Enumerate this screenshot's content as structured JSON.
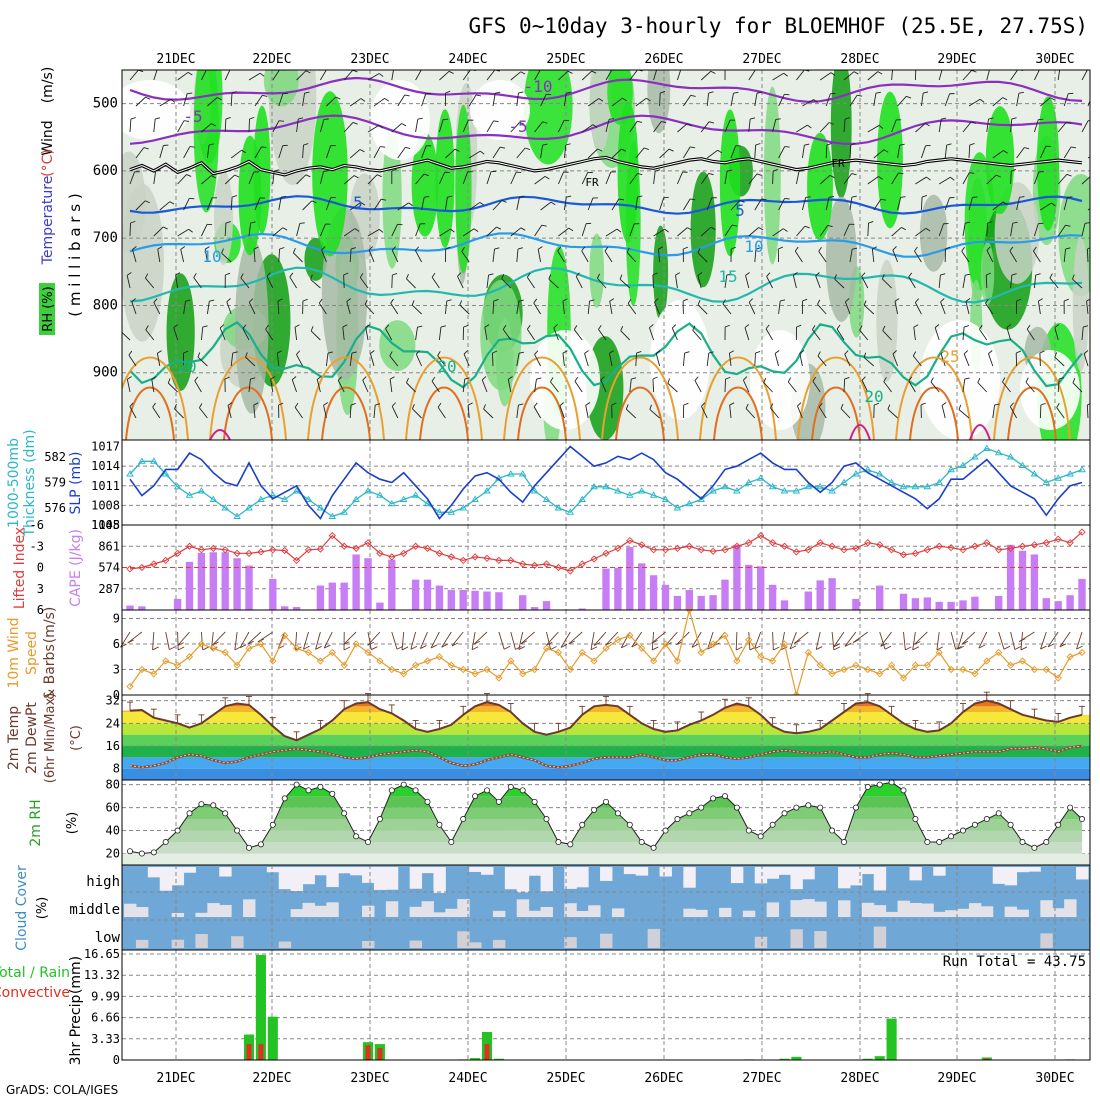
{
  "title": "GFS 0~10day 3-hourly for BLOEMHOF (25.5E, 27.75S)",
  "footer": "GrADS: COLA/IGES",
  "days": [
    "21DEC",
    "22DEC",
    "23DEC",
    "24DEC",
    "25DEC",
    "26DEC",
    "27DEC",
    "28DEC",
    "29DEC",
    "30DEC"
  ],
  "chart_data": [
    {
      "type": "heatmap",
      "name": "upper-air cross-section",
      "ylabel": "m i l l i b a r s",
      "yticks": [
        500,
        600,
        700,
        800,
        900
      ],
      "ylim": [
        1000,
        450
      ],
      "legend": {
        "wind": "Wind (m/s)",
        "temperature": "Temperature (°C)",
        "rh": "RH (%)"
      },
      "contour_labels": [
        "-10",
        "-5",
        "-5",
        "FR",
        "FR",
        "5",
        "5",
        "10",
        "10",
        "15",
        "20",
        "20",
        "20",
        "25"
      ],
      "freezing_level_mb": [
        598,
        592,
        600,
        590,
        602,
        596,
        588,
        604,
        600,
        594,
        586,
        598,
        602,
        606,
        600,
        596,
        594,
        598,
        592,
        594,
        598,
        600,
        596,
        592,
        588,
        584,
        590,
        596,
        594,
        590,
        586,
        588,
        592,
        596,
        600,
        598,
        594,
        590,
        586,
        582,
        580,
        586,
        590,
        594,
        596,
        592,
        588,
        584,
        582,
        586,
        588,
        584,
        582,
        586,
        590,
        594,
        598,
        596,
        592,
        588,
        586,
        584,
        586,
        588,
        590,
        592,
        590,
        586,
        584,
        582,
        584,
        586,
        588,
        590,
        592,
        590,
        588,
        586,
        584,
        586,
        588
      ]
    },
    {
      "type": "line",
      "name": "thickness-slp",
      "ylabel_left": "1000-500mb Thickness (dm)",
      "ylabel_right": "SLP (mb)",
      "yticks_left": [
        576,
        579,
        582
      ],
      "yticks_right": [
        1005,
        1008,
        1011,
        1014,
        1017
      ],
      "series": [
        {
          "name": "SLP (mb)",
          "color": "#1b3fc8",
          "ylim": [
            1005,
            1018
          ],
          "values": [
            1012,
            1009.5,
            1011,
            1013.5,
            1013.5,
            1016,
            1015,
            1013,
            1011.5,
            1011,
            1014.5,
            1011,
            1009,
            1010,
            1011,
            1008,
            1006,
            1009.5,
            1012,
            1014.5,
            1013,
            1012,
            1011.5,
            1013,
            1011,
            1009,
            1006,
            1008,
            1010.5,
            1012.5,
            1013,
            1012,
            1010,
            1008.5,
            1011,
            1013,
            1015,
            1017,
            1015.5,
            1014,
            1014.5,
            1015.5,
            1015,
            1016,
            1015,
            1013,
            1012,
            1010.5,
            1009,
            1011,
            1013.5,
            1014,
            1015,
            1016,
            1014.5,
            1013.5,
            1013.5,
            1011.5,
            1010,
            1011.5,
            1014,
            1014.5,
            1013,
            1012,
            1011,
            1010,
            1009,
            1007.5,
            1009,
            1012,
            1012,
            1013.5,
            1015,
            1013,
            1011,
            1010,
            1009,
            1006.5,
            1009,
            1011,
            1011.5
          ]
        },
        {
          "name": "1000-500mb Thickness (dm)",
          "color": "#2bb7c8",
          "ylim": [
            574,
            584
          ],
          "values": [
            580,
            581.5,
            581.5,
            580,
            578.5,
            577.5,
            578,
            577,
            576,
            575,
            576,
            577,
            577.5,
            577,
            578,
            577,
            576,
            575,
            575.5,
            577,
            578,
            577.5,
            576.5,
            577,
            577.5,
            576.5,
            575.5,
            575.5,
            576,
            577,
            578,
            579.5,
            580,
            580,
            578,
            577,
            576,
            575.5,
            577,
            578.5,
            578.5,
            578,
            577.5,
            578,
            577.5,
            577,
            576,
            576.5,
            577,
            578,
            578.5,
            578,
            579,
            579.5,
            578.5,
            578,
            578,
            578.5,
            578.5,
            578,
            579,
            580,
            580.5,
            580,
            579,
            578.5,
            578.5,
            578.5,
            579,
            580.5,
            581,
            582,
            583,
            582.5,
            582,
            581,
            580,
            579,
            579.5,
            580,
            580.5
          ]
        }
      ]
    },
    {
      "type": "bar",
      "name": "lifted-index-cape",
      "ylabel_left": "Lifted Index",
      "ylabel_right": "CAPE (J/kg)",
      "yticks_left": [
        -6,
        -3,
        0,
        3,
        6
      ],
      "yticks_right": [
        287,
        574,
        861,
        1148
      ],
      "series": [
        {
          "name": "CAPE (J/kg)",
          "color": "#c77ef5",
          "ylim": [
            0,
            1148
          ],
          "values": [
            60,
            50,
            0,
            0,
            150,
            650,
            770,
            780,
            780,
            700,
            600,
            0,
            420,
            50,
            40,
            0,
            330,
            370,
            370,
            750,
            700,
            100,
            680,
            0,
            410,
            410,
            330,
            270,
            270,
            260,
            250,
            240,
            0,
            200,
            40,
            120,
            0,
            0,
            20,
            0,
            560,
            570,
            850,
            630,
            470,
            340,
            190,
            270,
            190,
            200,
            410,
            880,
            610,
            590,
            340,
            130,
            0,
            250,
            400,
            430,
            0,
            150,
            0,
            330,
            0,
            220,
            160,
            170,
            110,
            110,
            130,
            180,
            0,
            190,
            880,
            800,
            750,
            160,
            120,
            200,
            420
          ]
        },
        {
          "name": "Lifted Index",
          "color": "#e03c3c",
          "ylim": [
            6,
            -6
          ],
          "values": [
            0.2,
            0,
            -0.5,
            -1,
            -2,
            -3,
            -2.5,
            -2.7,
            -2.5,
            -2,
            -2,
            -2.2,
            -2.5,
            -2.4,
            -1,
            -2.5,
            -2.6,
            -4.5,
            -3,
            -2.7,
            -3.5,
            -2,
            -1.5,
            -2,
            -3,
            -2.7,
            -2,
            -1.5,
            -1,
            -1.5,
            -1.3,
            -1,
            -1,
            -0.5,
            -0.3,
            -0.5,
            0,
            0.5,
            -0.5,
            -1.2,
            -2,
            -2.7,
            -3.8,
            -3.2,
            -2.5,
            -2.5,
            -2.7,
            -3,
            -2.5,
            -2.3,
            -2.5,
            -3,
            -3.5,
            -4.5,
            -3.5,
            -3,
            -2.2,
            -2.5,
            -3.5,
            -3,
            -2.5,
            -2.7,
            -3.5,
            -3.2,
            -2.5,
            -1.8,
            -2,
            -2.5,
            -3,
            -2.8,
            -2.5,
            -3,
            -3.5,
            -2.5,
            -2.7,
            -3,
            -3.2,
            -3.5,
            -4,
            -3.5,
            -5
          ]
        }
      ]
    },
    {
      "type": "line",
      "name": "10m-wind",
      "ylabel": "10m Wind Speed & Barbs (m/s)",
      "ylim": [
        0,
        10
      ],
      "yticks": [
        0,
        3,
        6,
        9
      ],
      "series": [
        {
          "name": "10m Wind Speed",
          "color": "#e69b2a",
          "values": [
            1,
            3,
            2.5,
            4,
            3.5,
            4.5,
            6,
            5.5,
            5,
            3.5,
            5.5,
            6,
            4,
            7,
            5.5,
            5,
            4,
            5,
            3.5,
            6,
            5,
            4,
            3,
            2.5,
            3.5,
            4,
            4.5,
            3.5,
            3,
            2.5,
            3,
            2,
            4,
            2.5,
            3,
            5.5,
            5,
            3,
            5,
            4,
            5.5,
            6.5,
            7,
            5.5,
            4,
            6,
            4,
            10,
            5,
            6,
            7,
            4,
            6.5,
            4.5,
            4,
            6,
            0,
            5,
            3.5,
            2.5,
            3,
            3.5,
            3,
            2.5,
            3.5,
            2,
            3.5,
            3.5,
            5,
            3,
            3,
            2.5,
            4,
            5,
            3.5,
            4,
            3,
            3,
            2,
            4.5,
            5
          ]
        }
      ]
    },
    {
      "type": "area",
      "name": "2m-temperature",
      "ylabel": "2m Temp 2m DewPt (6hr Min/Max) (°C)",
      "ylim": [
        4,
        34
      ],
      "yticks": [
        8,
        16,
        24,
        32
      ],
      "series": [
        {
          "name": "2m Temp",
          "color": "#6b3a2a",
          "values": [
            28.5,
            28.7,
            26,
            25,
            24,
            22.5,
            24,
            27,
            30,
            31,
            30.5,
            27,
            23,
            19.5,
            18,
            20,
            22,
            25,
            29,
            31,
            31.5,
            29,
            27.5,
            25,
            22,
            21,
            22,
            23.5,
            27,
            30,
            31.5,
            30.5,
            28,
            24,
            21,
            20,
            21,
            22.5,
            27,
            30,
            30.5,
            30,
            27,
            24,
            22,
            21,
            21.5,
            23.5,
            25,
            27,
            29.5,
            31,
            30,
            27,
            23,
            21,
            20.5,
            21,
            22,
            25,
            28,
            31,
            31.5,
            30,
            27,
            24,
            22,
            21,
            21.5,
            24,
            28,
            31,
            32,
            31,
            29,
            27,
            26,
            25,
            24.5,
            26,
            27
          ]
        },
        {
          "name": "2m DewPt",
          "color": "#c8a07a",
          "values": [
            9,
            8.5,
            9,
            10,
            12,
            13,
            12.5,
            11,
            10,
            10.5,
            12,
            13,
            14,
            14.5,
            15,
            14.5,
            14,
            13,
            12,
            11.5,
            12,
            13,
            13.5,
            14,
            14.5,
            14,
            12,
            10,
            9,
            9.5,
            11,
            12,
            13,
            12,
            11,
            9,
            8.5,
            9,
            10,
            11.5,
            12,
            12,
            12,
            13,
            12,
            11,
            11,
            12,
            13,
            13,
            12,
            11.5,
            12,
            13,
            14,
            14.5,
            14,
            13.5,
            13.5,
            14,
            13,
            12,
            12,
            13,
            13.5,
            13,
            12,
            12,
            12.5,
            13,
            13.5,
            14,
            14,
            14,
            15,
            15,
            15.5,
            15,
            14,
            15.5,
            16
          ]
        }
      ]
    },
    {
      "type": "area",
      "name": "2m-rh",
      "ylabel": "2m RH (%)",
      "ylim": [
        10,
        84
      ],
      "yticks": [
        20,
        40,
        60,
        80
      ],
      "series": [
        {
          "name": "2m RH",
          "color": "#35c435",
          "values": [
            22,
            20,
            21,
            30,
            40,
            55,
            63,
            62,
            55,
            40,
            25,
            28,
            45,
            68,
            80,
            75,
            78,
            72,
            55,
            35,
            30,
            50,
            75,
            80,
            75,
            65,
            45,
            30,
            50,
            70,
            75,
            65,
            78,
            75,
            65,
            50,
            30,
            28,
            45,
            58,
            65,
            55,
            45,
            30,
            25,
            40,
            50,
            55,
            60,
            68,
            70,
            60,
            40,
            35,
            45,
            55,
            60,
            62,
            60,
            40,
            30,
            60,
            78,
            80,
            82,
            75,
            50,
            30,
            30,
            35,
            40,
            45,
            50,
            55,
            45,
            30,
            25,
            30,
            45,
            60,
            50
          ]
        }
      ]
    },
    {
      "type": "heatmap",
      "name": "cloud-cover",
      "ylabel": "Cloud Cover (%)",
      "levels": [
        "high",
        "middle",
        "low"
      ]
    },
    {
      "type": "bar",
      "name": "3hr-precip",
      "ylabel": "3hr Precip (mm)",
      "yticks": [
        0,
        3.33,
        6.66,
        9.99,
        13.32,
        16.65
      ],
      "ylim": [
        0,
        16.65
      ],
      "legend": [
        "Total / Rain",
        "Convective"
      ],
      "annotation": "Run Total = 43.75",
      "series": [
        {
          "name": "Total / Rain",
          "color": "#22c322",
          "values": [
            0,
            0,
            0,
            0,
            0,
            0,
            0,
            0,
            0,
            0,
            4,
            16.5,
            6.8,
            0,
            0,
            0,
            0,
            0,
            0,
            0,
            2.8,
            2.5,
            0,
            0,
            0,
            0,
            0,
            0,
            0.1,
            0.3,
            4.4,
            0.2,
            0,
            0,
            0,
            0,
            0,
            0,
            0,
            0,
            0,
            0,
            0,
            0,
            0,
            0,
            0,
            0,
            0.05,
            0,
            0,
            0,
            0.1,
            0,
            0,
            0.2,
            0.5,
            0,
            0,
            0.05,
            0,
            0,
            0.2,
            0.6,
            6.5,
            0,
            0,
            0,
            0,
            0,
            0,
            0,
            0.4,
            0,
            0,
            0,
            0,
            0,
            0,
            0.1,
            0
          ]
        },
        {
          "name": "Convective",
          "color": "#e03020",
          "values": [
            0,
            0,
            0,
            0,
            0,
            0,
            0,
            0,
            0,
            0,
            2.5,
            2.5,
            0,
            0,
            0,
            0,
            0,
            0,
            0,
            0,
            2.3,
            1.9,
            0,
            0,
            0,
            0,
            0,
            0,
            0,
            0,
            2.5,
            0,
            0,
            0,
            0,
            0,
            0,
            0,
            0,
            0,
            0,
            0,
            0,
            0,
            0,
            0,
            0,
            0,
            0,
            0,
            0,
            0,
            0,
            0,
            0,
            0,
            0,
            0,
            0,
            0,
            0,
            0,
            0,
            0.1,
            0,
            0,
            0,
            0,
            0,
            0,
            0,
            0,
            0.2,
            0,
            0,
            0,
            0,
            0,
            0,
            0,
            0
          ]
        }
      ]
    }
  ],
  "labels": {
    "wind": "Wind",
    "wind_units": "(m/s)",
    "temperature": "Temperature",
    "temp_units": "(°C)",
    "rh": "RH (%)",
    "millibars": "( m i l l i b a r s )",
    "thickness_1": "1000-500mb",
    "thickness_2": "Thickness (dm)",
    "slp": "SLP (mb)",
    "lifted": "Lifted Index",
    "cape": "CAPE (J/kg)",
    "wind10_1": "10m Wind",
    "wind10_2": "Speed",
    "wind10_3": "& Barbs",
    "wind10_4": "(m/s)",
    "temp2_1": "2m Temp",
    "temp2_2": "2m DewPt",
    "temp2_3": "(6hr Min/Max)",
    "temp2_4": "(°C)",
    "rh2_1": "2m RH",
    "rh2_2": "(%)",
    "cloud_1": "Cloud Cover",
    "cloud_2": "(%)",
    "high": "high",
    "middle": "middle",
    "low": "low",
    "precip_1": "3hr Precip",
    "precip_2": "(mm)",
    "total_rain": "Total / Rain",
    "convective": "Convective"
  },
  "colors": {
    "slp": "#1b3fc8",
    "thickness": "#2bb7c8",
    "cape": "#c77ef5",
    "lifted": "#e03c3c",
    "wind_speed": "#e69b2a",
    "rh_green": "#35c435",
    "cloud_sky": "#6fa8d6",
    "precip_total": "#22c322",
    "precip_conv": "#e03020"
  }
}
